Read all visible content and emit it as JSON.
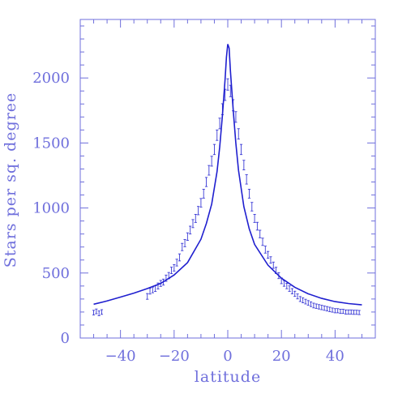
{
  "chart_data": {
    "type": "scatter",
    "title": "",
    "xlabel": "latitude",
    "ylabel": "Stars per sq. degree",
    "xlim": [
      -55,
      55
    ],
    "ylim": [
      0,
      2450
    ],
    "xticks": [
      -40,
      -20,
      0,
      20,
      40
    ],
    "xtick_labels": [
      "−40",
      "−20",
      "0",
      "20",
      "40"
    ],
    "yticks": [
      0,
      500,
      1000,
      1500,
      2000
    ],
    "ytick_labels": [
      "0",
      "500",
      "1000",
      "1500",
      "2000"
    ],
    "grid": false,
    "legend": "none",
    "colors": {
      "axis": "#6f6fdc",
      "data": "#3b3bd6",
      "curve": "#1f1fcf"
    },
    "series": [
      {
        "type": "errorbar",
        "x": [
          -50,
          -49,
          -48,
          -47,
          -30,
          -29,
          -28,
          -27,
          -26,
          -25,
          -24,
          -23,
          -22,
          -21,
          -20,
          -19,
          -18,
          -17,
          -16,
          -15,
          -14,
          -13,
          -12,
          -11,
          -10,
          -9,
          -8,
          -7,
          -6,
          -5,
          -4,
          -3,
          -2,
          -1,
          0,
          1,
          2,
          3,
          4,
          5,
          6,
          7,
          8,
          9,
          10,
          11,
          12,
          13,
          14,
          15,
          16,
          17,
          18,
          19,
          20,
          21,
          22,
          23,
          24,
          25,
          26,
          27,
          28,
          29,
          30,
          31,
          32,
          33,
          34,
          35,
          36,
          37,
          38,
          39,
          40,
          41,
          42,
          43,
          44,
          45,
          46,
          47,
          48,
          49
        ],
        "y": [
          195,
          205,
          190,
          200,
          320,
          360,
          370,
          380,
          400,
          420,
          430,
          460,
          480,
          520,
          540,
          580,
          620,
          700,
          730,
          780,
          830,
          880,
          920,
          980,
          1040,
          1110,
          1200,
          1290,
          1360,
          1450,
          1560,
          1650,
          1760,
          1870,
          1950,
          1900,
          1790,
          1700,
          1570,
          1450,
          1330,
          1220,
          1110,
          1010,
          920,
          860,
          800,
          740,
          680,
          640,
          600,
          560,
          520,
          480,
          440,
          420,
          400,
          380,
          360,
          340,
          320,
          300,
          290,
          280,
          270,
          260,
          250,
          245,
          240,
          235,
          230,
          225,
          220,
          215,
          210,
          210,
          205,
          205,
          200,
          200,
          200,
          198,
          198,
          196
        ],
        "err": [
          18,
          18,
          18,
          18,
          22,
          22,
          22,
          22,
          23,
          23,
          23,
          24,
          24,
          25,
          25,
          26,
          27,
          28,
          28,
          29,
          30,
          31,
          31,
          32,
          33,
          34,
          35,
          37,
          38,
          39,
          40,
          41,
          42,
          43,
          44,
          44,
          43,
          41,
          40,
          39,
          37,
          36,
          34,
          33,
          31,
          30,
          29,
          28,
          27,
          26,
          25,
          24,
          24,
          23,
          22,
          22,
          21,
          21,
          20,
          20,
          19,
          19,
          19,
          18,
          18,
          18,
          18,
          17,
          17,
          17,
          17,
          17,
          17,
          16,
          16,
          16,
          16,
          16,
          16,
          16,
          16,
          16,
          16,
          16
        ]
      },
      {
        "type": "line",
        "x": [
          -50,
          -45,
          -40,
          -35,
          -30,
          -25,
          -20,
          -15,
          -10,
          -8,
          -6,
          -4,
          -3,
          -2,
          -1,
          -0.5,
          0,
          0.5,
          1,
          2,
          3,
          4,
          6,
          8,
          10,
          15,
          20,
          25,
          30,
          35,
          40,
          45,
          50
        ],
        "y": [
          260,
          285,
          315,
          345,
          380,
          420,
          485,
          580,
          760,
          880,
          1030,
          1280,
          1470,
          1710,
          1990,
          2160,
          2260,
          2230,
          2050,
          1760,
          1500,
          1290,
          1010,
          840,
          720,
          560,
          460,
          390,
          340,
          305,
          280,
          265,
          255
        ]
      }
    ]
  }
}
